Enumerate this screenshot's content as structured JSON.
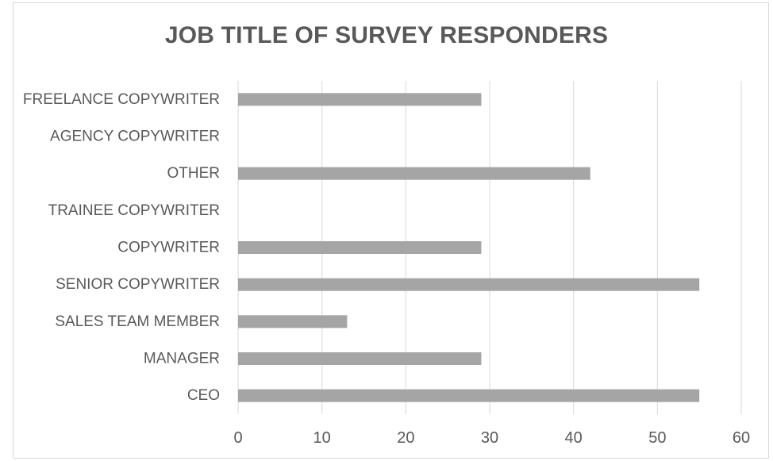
{
  "chart_data": {
    "type": "bar",
    "orientation": "horizontal",
    "title": "JOB TITLE OF SURVEY RESPONDERS",
    "xlabel": "",
    "ylabel": "",
    "categories": [
      "CEO",
      "MANAGER",
      "SALES TEAM MEMBER",
      "SENIOR COPYWRITER",
      "COPYWRITER",
      "TRAINEE COPYWRITER",
      "OTHER",
      "AGENCY COPYWRITER",
      "FREELANCE COPYWRITER"
    ],
    "values": [
      55,
      29,
      13,
      55,
      29,
      0,
      42,
      0,
      29
    ],
    "xlim": [
      0,
      60
    ],
    "xticks": [
      0,
      10,
      20,
      30,
      40,
      50,
      60
    ],
    "grid": true,
    "legend": "none",
    "bar_color": "#a5a5a5",
    "grid_color": "#d9d9d9",
    "text_color": "#595959"
  }
}
